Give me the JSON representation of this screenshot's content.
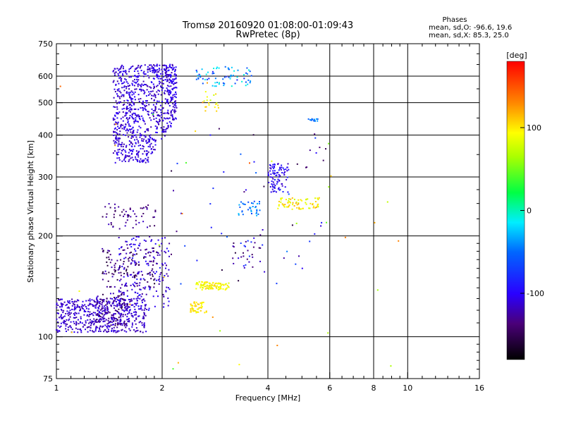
{
  "chart_data": {
    "type": "scatter",
    "title": "Tromsø 20160920 01:08:00-01:09:43",
    "subtitle": "RwPretec (8p)",
    "stats": {
      "heading": "Phases",
      "line1": "mean, sd,O: -96.6, 19.6",
      "line2": "mean, sd,X:  85.3, 25.0"
    },
    "xlabel": "Frequency [MHz]",
    "ylabel": "Stationary phase Virtual Height [km]",
    "xscale": "log",
    "yscale": "log",
    "xlim": [
      1,
      16
    ],
    "ylim": [
      75,
      750
    ],
    "xticks": [
      1,
      2,
      4,
      6,
      8,
      10,
      16
    ],
    "xtick_labels": [
      "1",
      "2",
      "4",
      "6",
      "8",
      "10",
      "16"
    ],
    "x_grid": [
      2,
      4,
      6,
      8,
      10
    ],
    "yticks": [
      75,
      100,
      200,
      300,
      400,
      500,
      600,
      750
    ],
    "ytick_labels": [
      "75",
      "100",
      "200",
      "300",
      "400",
      "500",
      "600",
      "750"
    ],
    "y_grid": [
      100,
      200,
      300,
      400,
      500,
      600
    ],
    "colorbar": {
      "label": "[deg]",
      "range": [
        -180,
        180
      ],
      "ticks": [
        100,
        0,
        -100
      ],
      "tick_labels": [
        "100",
        "0",
        "-100"
      ]
    },
    "clusters": [
      {
        "x": [
          1.45,
          2.2
        ],
        "y": [
          330,
          650
        ],
        "phase": -110,
        "spread": 15,
        "n": 900,
        "shape": "upper-left"
      },
      {
        "x": [
          1.0,
          1.8
        ],
        "y": [
          103,
          130
        ],
        "phase": -115,
        "spread": 12,
        "n": 500
      },
      {
        "x": [
          1.5,
          2.1
        ],
        "y": [
          120,
          200
        ],
        "phase": -110,
        "spread": 20,
        "n": 200
      },
      {
        "x": [
          1.3,
          1.6
        ],
        "y": [
          108,
          135
        ],
        "phase": -130,
        "spread": 25,
        "n": 120
      },
      {
        "x": [
          1.35,
          1.95
        ],
        "y": [
          140,
          185
        ],
        "phase": -140,
        "spread": 25,
        "n": 120
      },
      {
        "x": [
          1.35,
          1.95
        ],
        "y": [
          210,
          250
        ],
        "phase": -135,
        "spread": 20,
        "n": 60
      },
      {
        "x": [
          2.5,
          3.1
        ],
        "y": [
          138,
          146
        ],
        "phase": 95,
        "spread": 15,
        "n": 90
      },
      {
        "x": [
          2.4,
          2.7
        ],
        "y": [
          118,
          127
        ],
        "phase": 100,
        "spread": 15,
        "n": 45
      },
      {
        "x": [
          2.5,
          3.6
        ],
        "y": [
          560,
          640
        ],
        "phase": -45,
        "spread": 40,
        "n": 70
      },
      {
        "x": [
          2.6,
          2.9
        ],
        "y": [
          470,
          540
        ],
        "phase": 90,
        "spread": 30,
        "n": 18
      },
      {
        "x": [
          4.0,
          4.6
        ],
        "y": [
          270,
          330
        ],
        "phase": -100,
        "spread": 20,
        "n": 90
      },
      {
        "x": [
          4.3,
          5.6
        ],
        "y": [
          240,
          260
        ],
        "phase": 95,
        "spread": 25,
        "n": 70
      },
      {
        "x": [
          3.3,
          3.8
        ],
        "y": [
          230,
          255
        ],
        "phase": -45,
        "spread": 25,
        "n": 35
      },
      {
        "x": [
          3.1,
          3.9
        ],
        "y": [
          160,
          200
        ],
        "phase": -110,
        "spread": 40,
        "n": 30
      },
      {
        "x": [
          5.2,
          5.6
        ],
        "y": [
          440,
          450
        ],
        "phase": -40,
        "spread": 20,
        "n": 14
      },
      {
        "x": [
          2.1,
          6.0
        ],
        "y": [
          140,
          420
        ],
        "phase": -100,
        "spread": 60,
        "n": 55
      },
      {
        "x": [
          1.0,
          12.0
        ],
        "y": [
          80,
          650
        ],
        "phase": 90,
        "spread": 60,
        "n": 35
      }
    ]
  }
}
